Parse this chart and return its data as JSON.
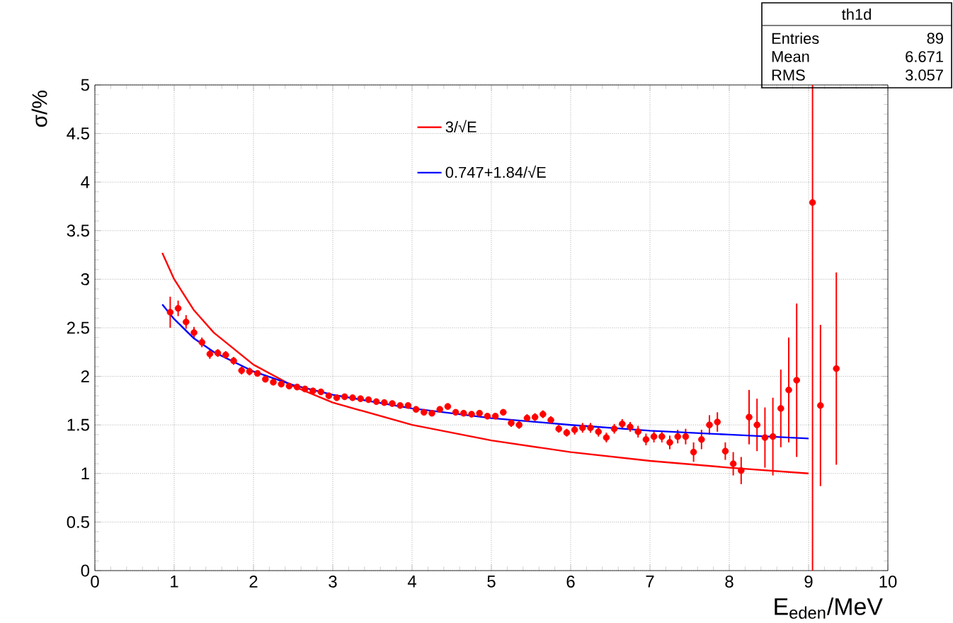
{
  "chart_data": {
    "type": "scatter",
    "xlabel": "E$_{eden}$/MeV",
    "ylabel": "σ/%",
    "xlim": [
      0,
      10
    ],
    "ylim": [
      0,
      5
    ],
    "xticks": [
      0,
      1,
      2,
      3,
      4,
      5,
      6,
      7,
      8,
      9,
      10
    ],
    "yticks": [
      0,
      0.5,
      1,
      1.5,
      2,
      2.5,
      3,
      3.5,
      4,
      4.5,
      5
    ],
    "grid": true,
    "legend": "top",
    "annotations": [
      "th1d",
      "Entries",
      "89",
      "Mean",
      "6.671",
      "RMS",
      "3.057"
    ],
    "series": [
      {
        "color": "#ff0000",
        "marker": "circle",
        "x": [
          0.95,
          1.05,
          1.15,
          1.25,
          1.35,
          1.45,
          1.55,
          1.65,
          1.75,
          1.85,
          1.95,
          2.05,
          2.15,
          2.25,
          2.35,
          2.45,
          2.55,
          2.65,
          2.75,
          2.85,
          2.95,
          3.05,
          3.15,
          3.25,
          3.35,
          3.45,
          3.55,
          3.65,
          3.75,
          3.85,
          3.95,
          4.05,
          4.15,
          4.25,
          4.35,
          4.45,
          4.55,
          4.65,
          4.75,
          4.85,
          4.95,
          5.05,
          5.15,
          5.25,
          5.35,
          5.45,
          5.55,
          5.65,
          5.75,
          5.85,
          5.95,
          6.05,
          6.15,
          6.25,
          6.35,
          6.45,
          6.55,
          6.65,
          6.75,
          6.85,
          6.95,
          7.05,
          7.15,
          7.25,
          7.35,
          7.45,
          7.55,
          7.65,
          7.75,
          7.85,
          7.95,
          8.05,
          8.15,
          8.25,
          8.35,
          8.45,
          8.55,
          8.65,
          8.75,
          8.85,
          8.95,
          9.05,
          9.15,
          9.25,
          9.35
        ],
        "values": [
          2.66,
          2.7,
          2.56,
          2.45,
          2.35,
          2.23,
          2.24,
          2.22,
          2.16,
          2.06,
          2.05,
          2.03,
          1.97,
          1.94,
          1.92,
          1.9,
          1.89,
          1.87,
          1.85,
          1.84,
          1.8,
          1.78,
          1.79,
          1.78,
          1.77,
          1.76,
          1.74,
          1.73,
          1.72,
          1.7,
          1.7,
          1.66,
          1.63,
          1.62,
          1.66,
          1.69,
          1.63,
          1.62,
          1.61,
          1.62,
          1.59,
          1.59,
          1.63,
          1.52,
          1.5,
          1.57,
          1.58,
          1.61,
          1.55,
          1.46,
          1.42,
          1.45,
          1.47,
          1.47,
          1.43,
          1.37,
          1.46,
          1.51,
          1.48,
          1.43,
          1.35,
          1.38,
          1.38,
          1.32,
          1.38,
          1.38,
          1.22,
          1.35,
          1.5,
          1.53,
          1.23,
          1.1,
          1.03,
          1.58,
          1.5,
          1.37,
          1.38,
          1.67,
          1.86,
          1.96,
          null,
          3.79,
          1.7,
          null,
          2.08
        ],
        "errors": [
          0.16,
          0.08,
          0.07,
          0.06,
          0.05,
          0.05,
          0.04,
          0.04,
          0.04,
          0.04,
          0.04,
          0.03,
          0.03,
          0.03,
          0.03,
          0.03,
          0.03,
          0.03,
          0.03,
          0.03,
          0.03,
          0.03,
          0.03,
          0.03,
          0.03,
          0.03,
          0.03,
          0.03,
          0.03,
          0.03,
          0.03,
          0.03,
          0.03,
          0.03,
          0.03,
          0.03,
          0.03,
          0.03,
          0.03,
          0.03,
          0.03,
          0.03,
          0.03,
          0.04,
          0.04,
          0.04,
          0.04,
          0.04,
          0.04,
          0.04,
          0.04,
          0.05,
          0.05,
          0.05,
          0.05,
          0.05,
          0.05,
          0.05,
          0.05,
          0.06,
          0.06,
          0.06,
          0.06,
          0.07,
          0.07,
          0.08,
          0.1,
          0.1,
          0.1,
          0.1,
          0.09,
          0.12,
          0.14,
          0.28,
          0.27,
          0.31,
          0.4,
          0.4,
          0.54,
          0.79,
          null,
          [
            0,
            5
          ],
          0.83,
          null,
          0.99
        ]
      },
      {
        "type": "line",
        "name": "3/√E",
        "color": "#ff0000",
        "marker": "none",
        "line_style": "solid",
        "x": [
          0.85,
          1,
          1.25,
          1.5,
          2,
          2.5,
          3,
          4,
          5,
          6,
          7,
          8,
          9
        ],
        "values": [
          3.27,
          3.0,
          2.68,
          2.45,
          2.12,
          1.9,
          1.73,
          1.5,
          1.34,
          1.22,
          1.13,
          1.06,
          1.0
        ]
      },
      {
        "type": "line",
        "name": "0.747+1.84/√E",
        "color": "#0000ff",
        "marker": "none",
        "line_style": "solid",
        "x": [
          0.85,
          1,
          1.25,
          1.5,
          2,
          2.5,
          3,
          4,
          5,
          6,
          7,
          8,
          9
        ],
        "values": [
          2.74,
          2.59,
          2.39,
          2.25,
          2.05,
          1.91,
          1.81,
          1.67,
          1.57,
          1.5,
          1.44,
          1.4,
          1.36
        ]
      }
    ]
  }
}
